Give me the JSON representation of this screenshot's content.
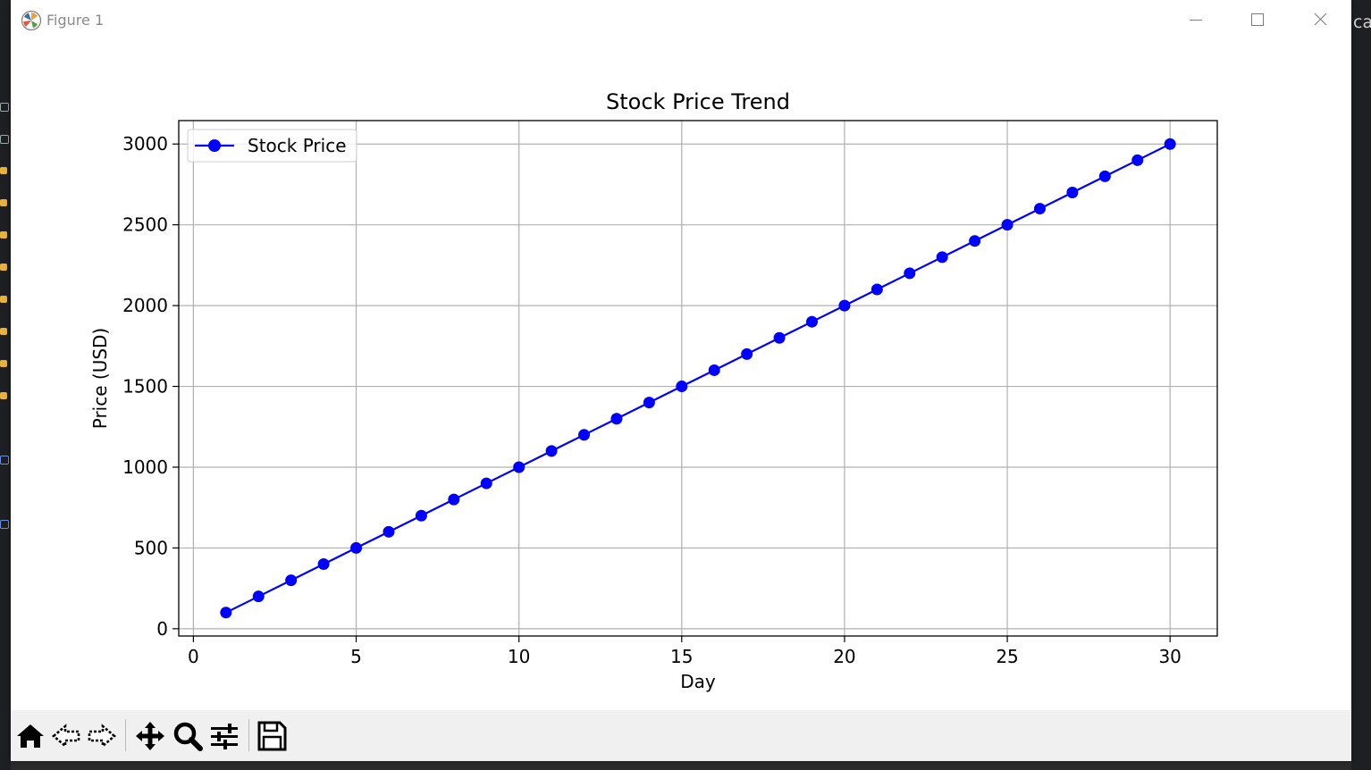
{
  "window": {
    "title": "Figure 1"
  },
  "chart_data": {
    "type": "line",
    "title": "Stock Price Trend",
    "xlabel": "Day",
    "ylabel": "Price (USD)",
    "x": [
      1,
      2,
      3,
      4,
      5,
      6,
      7,
      8,
      9,
      10,
      11,
      12,
      13,
      14,
      15,
      16,
      17,
      18,
      19,
      20,
      21,
      22,
      23,
      24,
      25,
      26,
      27,
      28,
      29,
      30
    ],
    "series": [
      {
        "name": "Stock Price",
        "color": "#0000ff",
        "marker": "circle",
        "values": [
          100,
          200,
          300,
          400,
          500,
          600,
          700,
          800,
          900,
          1000,
          1100,
          1200,
          1300,
          1400,
          1500,
          1600,
          1700,
          1800,
          1900,
          2000,
          2100,
          2200,
          2300,
          2400,
          2500,
          2600,
          2700,
          2800,
          2900,
          3000
        ]
      }
    ],
    "xlim": [
      -0.45,
      31.45
    ],
    "ylim": [
      -45,
      3145
    ],
    "xticks": [
      0,
      5,
      10,
      15,
      20,
      25,
      30
    ],
    "yticks": [
      0,
      500,
      1000,
      1500,
      2000,
      2500,
      3000
    ],
    "grid": true,
    "legend": "top-left"
  },
  "toolbar": {
    "icons": [
      "home-icon",
      "back-arrow-icon",
      "forward-arrow-icon",
      "pan-icon",
      "zoom-icon",
      "configure-subplots-icon",
      "save-icon"
    ]
  }
}
